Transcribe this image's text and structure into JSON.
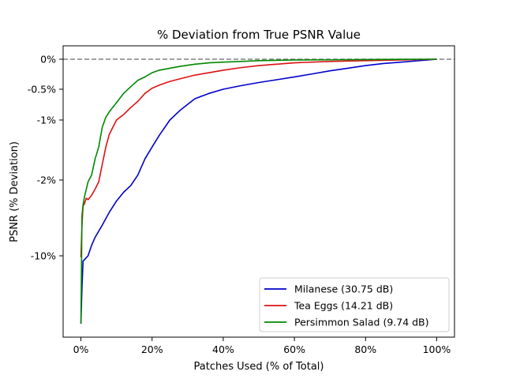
{
  "chart_data": {
    "type": "line",
    "title": "% Deviation from True PSNR Value",
    "xlabel": "Patches Used (% of Total)",
    "ylabel": "PSNR (% Deviation)",
    "xlim": [
      -5,
      105
    ],
    "xticks": [
      0,
      20,
      40,
      60,
      80,
      100
    ],
    "xtick_labels": [
      "0%",
      "20%",
      "40%",
      "60%",
      "80%",
      "100%"
    ],
    "yticks": [
      0,
      -0.5,
      -1,
      -2,
      -10
    ],
    "ytick_labels": [
      "0%",
      "-0.5%",
      "-1%",
      "-2%",
      "-10%"
    ],
    "y_scale": "symlog",
    "reference_line": {
      "y": 0,
      "style": "dashed",
      "color": "#808080"
    },
    "legend_position": "lower-right",
    "grid": false,
    "series": [
      {
        "name": "Milanese (30.75 dB)",
        "color": "#0000cc",
        "x": [
          0,
          0.3,
          0.6,
          1,
          2,
          3,
          4,
          6,
          8,
          10,
          12,
          14,
          16,
          18,
          20,
          22,
          25,
          28,
          32,
          36,
          40,
          45,
          50,
          55,
          60,
          65,
          70,
          75,
          80,
          85,
          90,
          95,
          100
        ],
        "y": [
          -100,
          -30,
          -12,
          -11.5,
          -10,
          -8.2,
          -7,
          -5.5,
          -4.2,
          -3.3,
          -2.7,
          -2.3,
          -1.9,
          -1.6,
          -1.4,
          -1.22,
          -1.0,
          -0.82,
          -0.64,
          -0.56,
          -0.5,
          -0.43,
          -0.37,
          -0.32,
          -0.27,
          -0.22,
          -0.17,
          -0.13,
          -0.09,
          -0.06,
          -0.04,
          -0.02,
          0
        ]
      },
      {
        "name": "Tea Eggs (14.21 dB)",
        "color": "#dd1111",
        "x": [
          0,
          0.3,
          0.6,
          1,
          1.5,
          2,
          3,
          4,
          5,
          6,
          7,
          8,
          10,
          12,
          14,
          16,
          18,
          20,
          22,
          25,
          28,
          32,
          36,
          40,
          45,
          50,
          55,
          60,
          70,
          80,
          90,
          100
        ],
        "y": [
          -10.5,
          -5.5,
          -3.7,
          -3.5,
          -3.1,
          -3.2,
          -2.9,
          -2.5,
          -2.1,
          -1.7,
          -1.4,
          -1.2,
          -1.0,
          -0.9,
          -0.78,
          -0.68,
          -0.56,
          -0.48,
          -0.42,
          -0.35,
          -0.3,
          -0.24,
          -0.2,
          -0.16,
          -0.12,
          -0.09,
          -0.07,
          -0.05,
          -0.03,
          -0.02,
          -0.01,
          0
        ]
      },
      {
        "name": "Persimmon Salad (9.74 dB)",
        "color": "#008800",
        "x": [
          0,
          0.3,
          0.6,
          1,
          2,
          3,
          4,
          5,
          6,
          7,
          8,
          10,
          12,
          14,
          16,
          18,
          20,
          22,
          25,
          28,
          32,
          36,
          40,
          45,
          50,
          60,
          70,
          80,
          90,
          100
        ],
        "y": [
          -100,
          -4.5,
          -3.6,
          -3.0,
          -2.1,
          -1.9,
          -1.6,
          -1.4,
          -1.1,
          -0.95,
          -0.85,
          -0.7,
          -0.56,
          -0.45,
          -0.33,
          -0.27,
          -0.2,
          -0.16,
          -0.13,
          -0.1,
          -0.07,
          -0.05,
          -0.04,
          -0.03,
          -0.02,
          -0.01,
          -0.008,
          -0.005,
          -0.002,
          0
        ]
      }
    ]
  }
}
